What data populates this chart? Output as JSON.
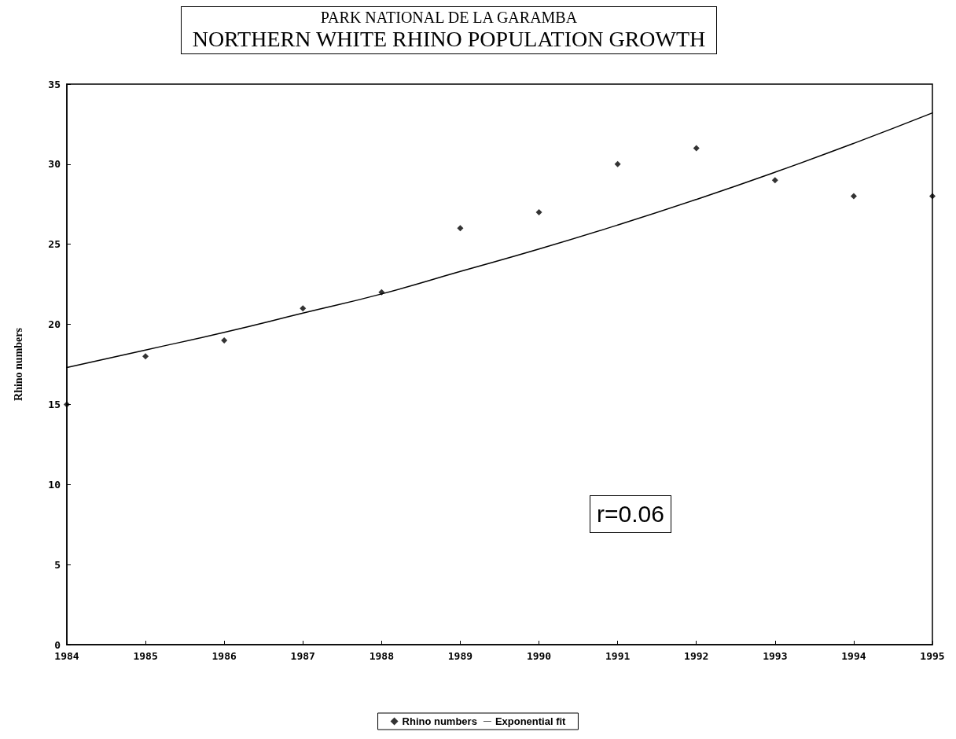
{
  "chart_data": {
    "type": "scatter",
    "subtitle": "PARK NATIONAL DE LA GARAMBA",
    "title": "NORTHERN WHITE RHINO POPULATION GROWTH",
    "ylabel": "Rhino numbers",
    "xlim": [
      1984,
      1995
    ],
    "xticks": [
      1984,
      1985,
      1986,
      1987,
      1988,
      1989,
      1990,
      1991,
      1992,
      1993,
      1994,
      1995
    ],
    "ylim": [
      0,
      35
    ],
    "yticks": [
      0,
      5,
      10,
      15,
      20,
      25,
      30,
      35
    ],
    "series": [
      {
        "name": "Rhino numbers",
        "color": "#000000",
        "marker": "diamond",
        "x": [
          1984,
          1985,
          1986,
          1987,
          1988,
          1989,
          1990,
          1991,
          1992,
          1993,
          1994,
          1995
        ],
        "values": [
          15,
          18,
          19,
          21,
          22,
          26,
          27,
          30,
          31,
          29,
          28,
          28
        ]
      },
      {
        "name": "Exponential fit",
        "type": "line",
        "color": "#000000",
        "line_style": "solid",
        "x": [
          1984,
          1985,
          1986,
          1987,
          1988,
          1989,
          1990,
          1991,
          1992,
          1993,
          1994,
          1995
        ],
        "values": [
          17.3,
          18.4,
          19.5,
          20.7,
          21.9,
          23.3,
          24.7,
          26.2,
          27.8,
          29.5,
          31.3,
          33.2
        ]
      }
    ],
    "annotations": [
      "r=0.06"
    ],
    "legend": "bottom",
    "grid": false
  }
}
